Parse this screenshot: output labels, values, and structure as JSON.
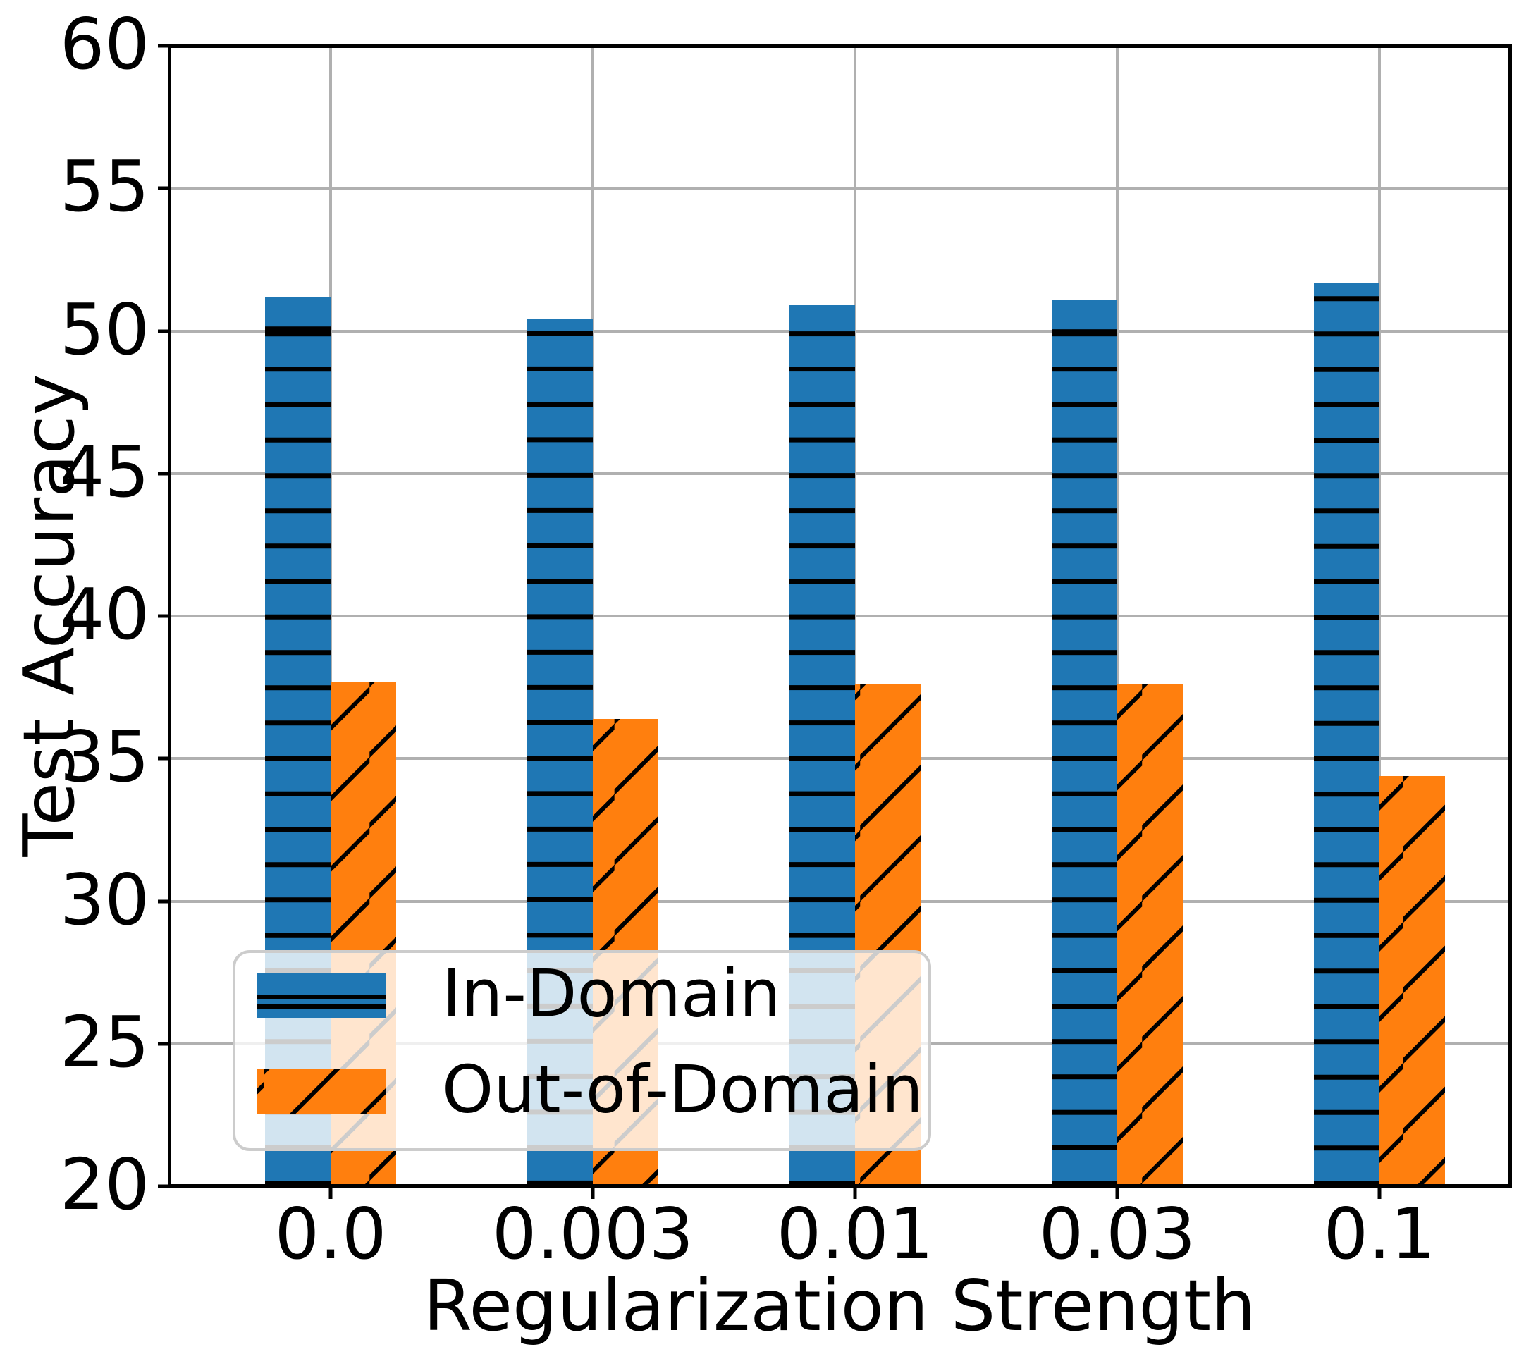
{
  "axes": {
    "xlabel": "Regularization Strength",
    "ylabel": "Test Accuracy",
    "ylim": [
      20,
      60
    ],
    "yticks": [
      "20",
      "25",
      "30",
      "35",
      "40",
      "45",
      "50",
      "55",
      "60"
    ],
    "xticklabels": [
      "0.0",
      "0.003",
      "0.01",
      "0.03",
      "0.1"
    ],
    "grid": true
  },
  "legend": {
    "position": "lower left",
    "items": [
      {
        "label": "In-Domain"
      },
      {
        "label": "Out-of-Domain"
      }
    ]
  },
  "chart_data": {
    "type": "bar",
    "categories": [
      "0.0",
      "0.003",
      "0.01",
      "0.03",
      "0.1"
    ],
    "series": [
      {
        "name": "In-Domain",
        "values": [
          51.2,
          50.4,
          50.9,
          51.1,
          51.7
        ],
        "color": "#1f77b4",
        "hatch": "-"
      },
      {
        "name": "Out-of-Domain",
        "values": [
          37.7,
          36.4,
          37.6,
          37.6,
          34.4
        ],
        "color": "#ff7f0e",
        "hatch": "/"
      }
    ],
    "title": "",
    "xlabel": "Regularization Strength",
    "ylabel": "Test Accuracy",
    "ylim": [
      20,
      60
    ],
    "ytick_step": 5,
    "grid": true,
    "legend_position": "lower left"
  },
  "colors": {
    "bar_blue": "#1f77b4",
    "bar_orange": "#ff7f0e",
    "hatch": "#000000",
    "grid": "#b0b0b0",
    "spine": "#000000",
    "legend_border": "#cccccc",
    "legend_bg": "rgba(255,255,255,0.8)",
    "text": "#000000"
  }
}
